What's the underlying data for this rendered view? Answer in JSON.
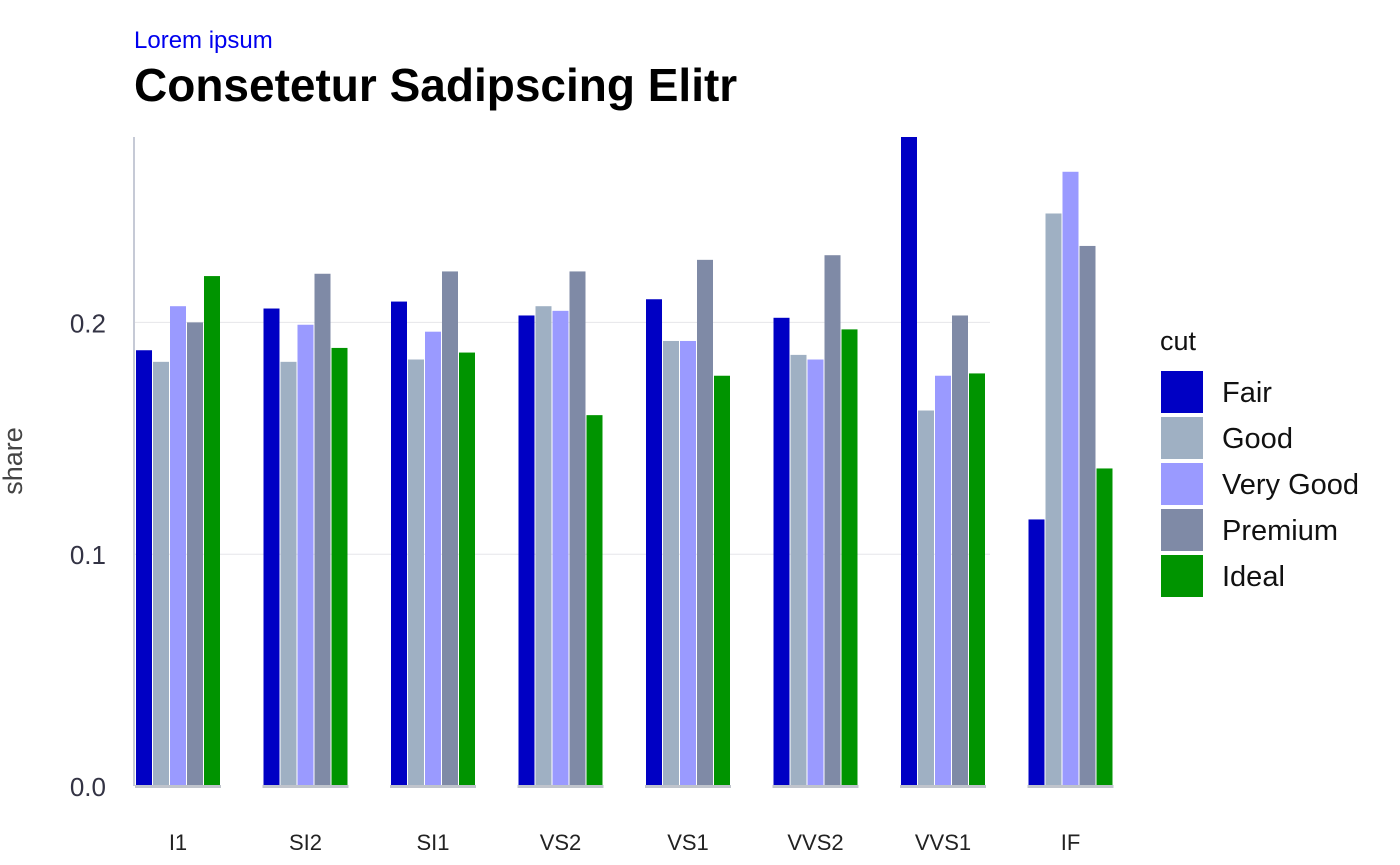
{
  "chart_data": {
    "type": "bar",
    "subtitle": "Lorem ipsum",
    "title": "Consetetur Sadipscing Elitr",
    "xlabel": "",
    "ylabel": "share",
    "ylim": [
      0,
      0.28
    ],
    "yticks": [
      0.0,
      0.1,
      0.2
    ],
    "ytick_labels": [
      "0.0",
      "0.1",
      "0.2"
    ],
    "categories": [
      "I1",
      "SI2",
      "SI1",
      "VS2",
      "VS1",
      "VVS2",
      "VVS1",
      "IF"
    ],
    "legend_title": "cut",
    "legend_position": "right",
    "grid": true,
    "series": [
      {
        "name": "Fair",
        "color": "#0000c4",
        "values": [
          0.188,
          0.206,
          0.209,
          0.203,
          0.21,
          0.202,
          0.28,
          0.115
        ]
      },
      {
        "name": "Good",
        "color": "#9fb0c3",
        "values": [
          0.183,
          0.183,
          0.184,
          0.207,
          0.192,
          0.186,
          0.162,
          0.247
        ]
      },
      {
        "name": "Very Good",
        "color": "#9a9aff",
        "values": [
          0.207,
          0.199,
          0.196,
          0.205,
          0.192,
          0.184,
          0.177,
          0.265
        ]
      },
      {
        "name": "Premium",
        "color": "#7f8aa6",
        "values": [
          0.2,
          0.221,
          0.222,
          0.222,
          0.227,
          0.229,
          0.203,
          0.233
        ]
      },
      {
        "name": "Ideal",
        "color": "#009400",
        "values": [
          0.22,
          0.189,
          0.187,
          0.16,
          0.177,
          0.197,
          0.178,
          0.137
        ]
      }
    ]
  }
}
